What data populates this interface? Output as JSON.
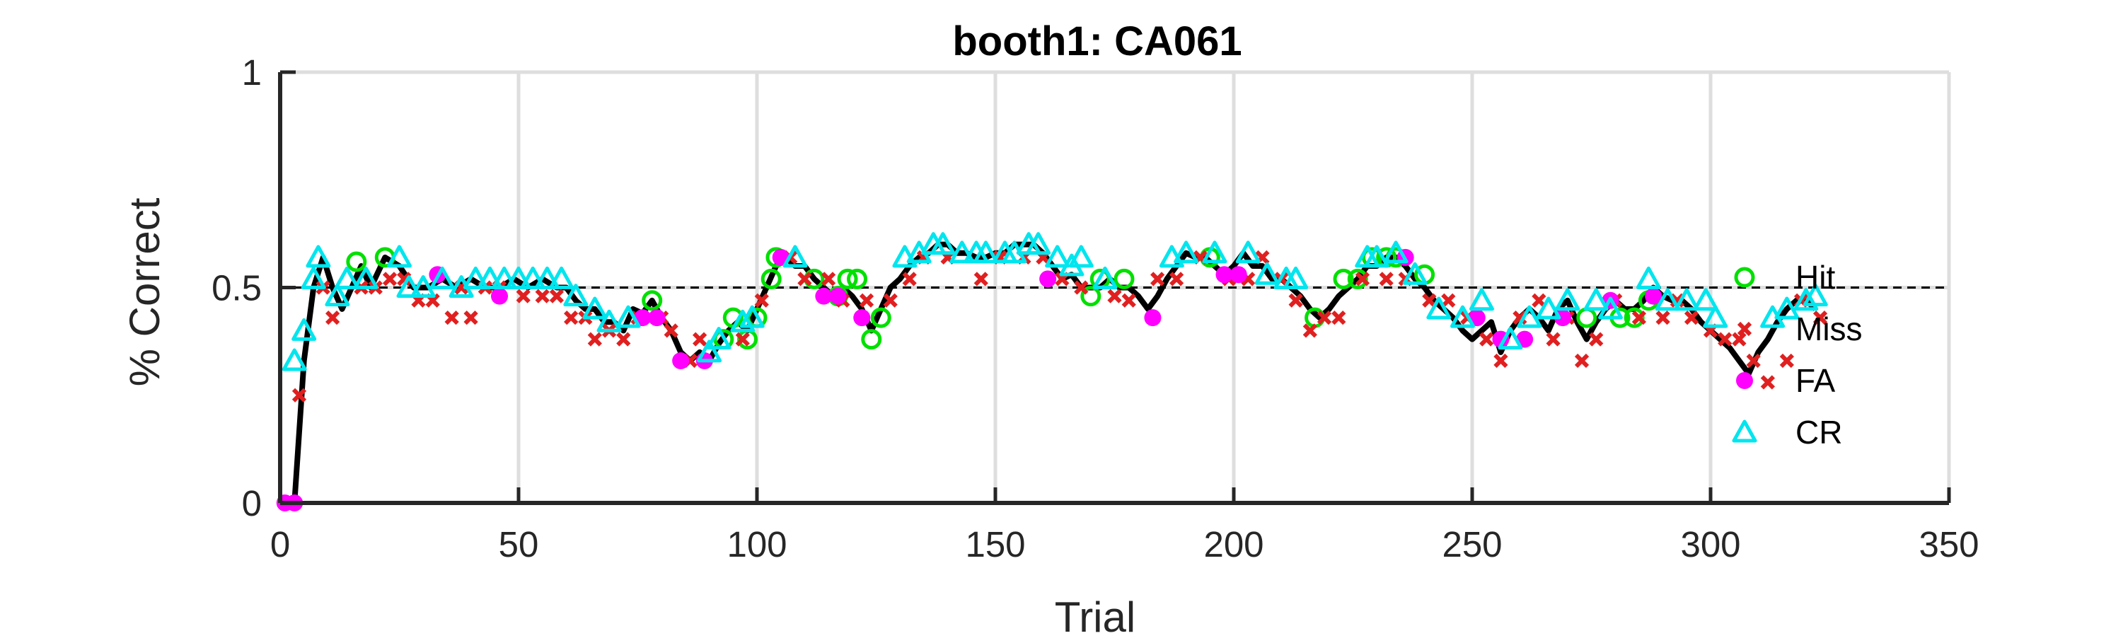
{
  "chart_data": {
    "type": "line",
    "title": "booth1: CA061",
    "xlabel": "Trial",
    "ylabel": "% Correct",
    "xlim": [
      0,
      350
    ],
    "ylim": [
      0,
      1
    ],
    "xticks": [
      "0",
      "50",
      "100",
      "150",
      "200",
      "250",
      "300",
      "350"
    ],
    "yticks": [
      "0",
      "0.5",
      "1"
    ],
    "grid": true,
    "reference_line": 0.5,
    "legend_position": "right",
    "performance_line": {
      "color": "#000000",
      "x": [
        1,
        3,
        5,
        7,
        9,
        11,
        13,
        15,
        17,
        19,
        22,
        25,
        28,
        31,
        34,
        37,
        40,
        43,
        46,
        49,
        52,
        55,
        58,
        60,
        62,
        64,
        66,
        68,
        70,
        72,
        74,
        76,
        78,
        80,
        82,
        84,
        86,
        88,
        90,
        92,
        94,
        96,
        98,
        100,
        102,
        104,
        106,
        108,
        110,
        112,
        114,
        116,
        118,
        120,
        122,
        124,
        126,
        128,
        130,
        132,
        134,
        136,
        138,
        140,
        142,
        144,
        146,
        148,
        150,
        152,
        154,
        156,
        158,
        160,
        162,
        164,
        166,
        168,
        170,
        172,
        174,
        176,
        178,
        180,
        182,
        184,
        186,
        188,
        190,
        192,
        194,
        196,
        198,
        200,
        202,
        204,
        206,
        208,
        210,
        212,
        214,
        216,
        218,
        220,
        222,
        224,
        226,
        228,
        230,
        232,
        234,
        236,
        238,
        240,
        242,
        244,
        246,
        248,
        250,
        252,
        254,
        256,
        258,
        260,
        262,
        264,
        266,
        268,
        270,
        272,
        274,
        276,
        278,
        280,
        282,
        284,
        286,
        288,
        290,
        292,
        294,
        296,
        298,
        300,
        302,
        304,
        306,
        308,
        310,
        312,
        314,
        316,
        318,
        320,
        322
      ],
      "y": [
        0,
        0,
        0.33,
        0.5,
        0.57,
        0.5,
        0.45,
        0.5,
        0.55,
        0.5,
        0.57,
        0.55,
        0.5,
        0.5,
        0.52,
        0.5,
        0.52,
        0.5,
        0.5,
        0.52,
        0.5,
        0.52,
        0.5,
        0.5,
        0.47,
        0.45,
        0.45,
        0.42,
        0.42,
        0.4,
        0.45,
        0.44,
        0.47,
        0.43,
        0.4,
        0.35,
        0.33,
        0.35,
        0.33,
        0.37,
        0.4,
        0.42,
        0.4,
        0.45,
        0.5,
        0.55,
        0.57,
        0.55,
        0.55,
        0.52,
        0.5,
        0.48,
        0.5,
        0.48,
        0.45,
        0.4,
        0.45,
        0.5,
        0.52,
        0.55,
        0.57,
        0.58,
        0.6,
        0.6,
        0.58,
        0.58,
        0.57,
        0.57,
        0.58,
        0.58,
        0.6,
        0.6,
        0.6,
        0.58,
        0.55,
        0.52,
        0.53,
        0.5,
        0.5,
        0.5,
        0.52,
        0.5,
        0.5,
        0.48,
        0.45,
        0.48,
        0.52,
        0.55,
        0.58,
        0.57,
        0.57,
        0.55,
        0.53,
        0.55,
        0.58,
        0.55,
        0.55,
        0.52,
        0.52,
        0.5,
        0.48,
        0.45,
        0.43,
        0.45,
        0.48,
        0.5,
        0.52,
        0.55,
        0.55,
        0.57,
        0.57,
        0.55,
        0.52,
        0.5,
        0.47,
        0.45,
        0.43,
        0.4,
        0.38,
        0.4,
        0.42,
        0.35,
        0.4,
        0.43,
        0.45,
        0.43,
        0.4,
        0.45,
        0.47,
        0.42,
        0.38,
        0.42,
        0.45,
        0.47,
        0.45,
        0.45,
        0.47,
        0.5,
        0.48,
        0.47,
        0.47,
        0.45,
        0.42,
        0.4,
        0.38,
        0.36,
        0.33,
        0.3,
        0.35,
        0.38,
        0.42,
        0.45,
        0.47,
        0.47,
        0.45
      ]
    },
    "series": [
      {
        "name": "Hit",
        "marker": "circle-open",
        "color": "#00e000",
        "x": [
          16,
          22,
          78,
          93,
          95,
          98,
          100,
          103,
          104,
          112,
          117,
          119,
          121,
          124,
          126,
          170,
          172,
          177,
          195,
          217,
          223,
          226,
          229,
          232,
          234,
          240,
          274,
          281,
          284,
          287
        ],
        "y": [
          0.56,
          0.57,
          0.47,
          0.38,
          0.43,
          0.38,
          0.43,
          0.52,
          0.57,
          0.52,
          0.48,
          0.52,
          0.52,
          0.38,
          0.43,
          0.48,
          0.52,
          0.52,
          0.57,
          0.43,
          0.52,
          0.52,
          0.57,
          0.57,
          0.57,
          0.53,
          0.43,
          0.43,
          0.43,
          0.47
        ]
      },
      {
        "name": "Miss",
        "marker": "x",
        "color": "#e02020",
        "x": [
          4,
          9,
          11,
          17,
          20,
          23,
          26,
          29,
          32,
          36,
          38,
          40,
          43,
          46,
          51,
          55,
          58,
          61,
          64,
          66,
          69,
          72,
          75,
          80,
          82,
          86,
          88,
          97,
          101,
          107,
          110,
          115,
          118,
          123,
          128,
          132,
          135,
          140,
          147,
          151,
          156,
          160,
          164,
          168,
          175,
          178,
          184,
          188,
          193,
          199,
          203,
          206,
          210,
          213,
          216,
          219,
          222,
          227,
          232,
          236,
          241,
          245,
          249,
          253,
          256,
          260,
          264,
          267,
          270,
          273,
          276,
          280,
          285,
          290,
          293,
          296,
          300,
          303,
          306,
          309,
          312,
          316,
          319,
          323
        ],
        "y": [
          0.25,
          0.5,
          0.43,
          0.5,
          0.5,
          0.52,
          0.52,
          0.47,
          0.47,
          0.43,
          0.5,
          0.43,
          0.5,
          0.5,
          0.48,
          0.48,
          0.48,
          0.43,
          0.43,
          0.38,
          0.4,
          0.38,
          0.43,
          0.43,
          0.4,
          0.33,
          0.38,
          0.38,
          0.47,
          0.57,
          0.52,
          0.52,
          0.47,
          0.47,
          0.47,
          0.52,
          0.57,
          0.57,
          0.52,
          0.57,
          0.57,
          0.57,
          0.52,
          0.5,
          0.48,
          0.47,
          0.52,
          0.52,
          0.57,
          0.52,
          0.52,
          0.57,
          0.52,
          0.47,
          0.4,
          0.43,
          0.43,
          0.52,
          0.52,
          0.52,
          0.47,
          0.47,
          0.43,
          0.38,
          0.33,
          0.43,
          0.47,
          0.38,
          0.43,
          0.33,
          0.38,
          0.47,
          0.43,
          0.43,
          0.47,
          0.43,
          0.4,
          0.38,
          0.38,
          0.33,
          0.28,
          0.33,
          0.47,
          0.43
        ]
      },
      {
        "name": "FA",
        "marker": "dot",
        "color": "#ff00ff",
        "x": [
          1,
          3,
          33,
          46,
          76,
          79,
          84,
          89,
          105,
          114,
          117,
          122,
          161,
          183,
          198,
          201,
          236,
          251,
          256,
          261,
          269,
          279,
          288
        ],
        "y": [
          0,
          0,
          0.53,
          0.48,
          0.43,
          0.43,
          0.33,
          0.33,
          0.57,
          0.48,
          0.48,
          0.43,
          0.52,
          0.43,
          0.53,
          0.53,
          0.57,
          0.43,
          0.38,
          0.38,
          0.43,
          0.47,
          0.48
        ]
      },
      {
        "name": "CR",
        "marker": "triangle-open",
        "color": "#00e5ee",
        "x": [
          3,
          5,
          7,
          8,
          12,
          14,
          18,
          25,
          27,
          30,
          34,
          38,
          41,
          44,
          47,
          50,
          53,
          56,
          59,
          62,
          66,
          69,
          73,
          90,
          92,
          97,
          99,
          108,
          131,
          134,
          137,
          139,
          143,
          146,
          148,
          152,
          154,
          157,
          159,
          163,
          166,
          168,
          173,
          187,
          190,
          196,
          203,
          207,
          211,
          213,
          228,
          230,
          234,
          238,
          243,
          248,
          252,
          258,
          262,
          266,
          270,
          276,
          279,
          287,
          291,
          295,
          299,
          301,
          313,
          316,
          320,
          322
        ],
        "y": [
          0.33,
          0.4,
          0.52,
          0.57,
          0.48,
          0.52,
          0.52,
          0.57,
          0.5,
          0.5,
          0.52,
          0.5,
          0.52,
          0.52,
          0.52,
          0.52,
          0.52,
          0.52,
          0.52,
          0.48,
          0.45,
          0.42,
          0.43,
          0.35,
          0.38,
          0.42,
          0.43,
          0.57,
          0.57,
          0.58,
          0.6,
          0.6,
          0.58,
          0.58,
          0.58,
          0.58,
          0.58,
          0.6,
          0.6,
          0.57,
          0.55,
          0.57,
          0.52,
          0.57,
          0.58,
          0.58,
          0.58,
          0.53,
          0.52,
          0.52,
          0.57,
          0.57,
          0.58,
          0.53,
          0.45,
          0.43,
          0.47,
          0.38,
          0.43,
          0.45,
          0.47,
          0.47,
          0.45,
          0.52,
          0.47,
          0.47,
          0.47,
          0.43,
          0.43,
          0.45,
          0.47,
          0.48
        ]
      }
    ]
  }
}
